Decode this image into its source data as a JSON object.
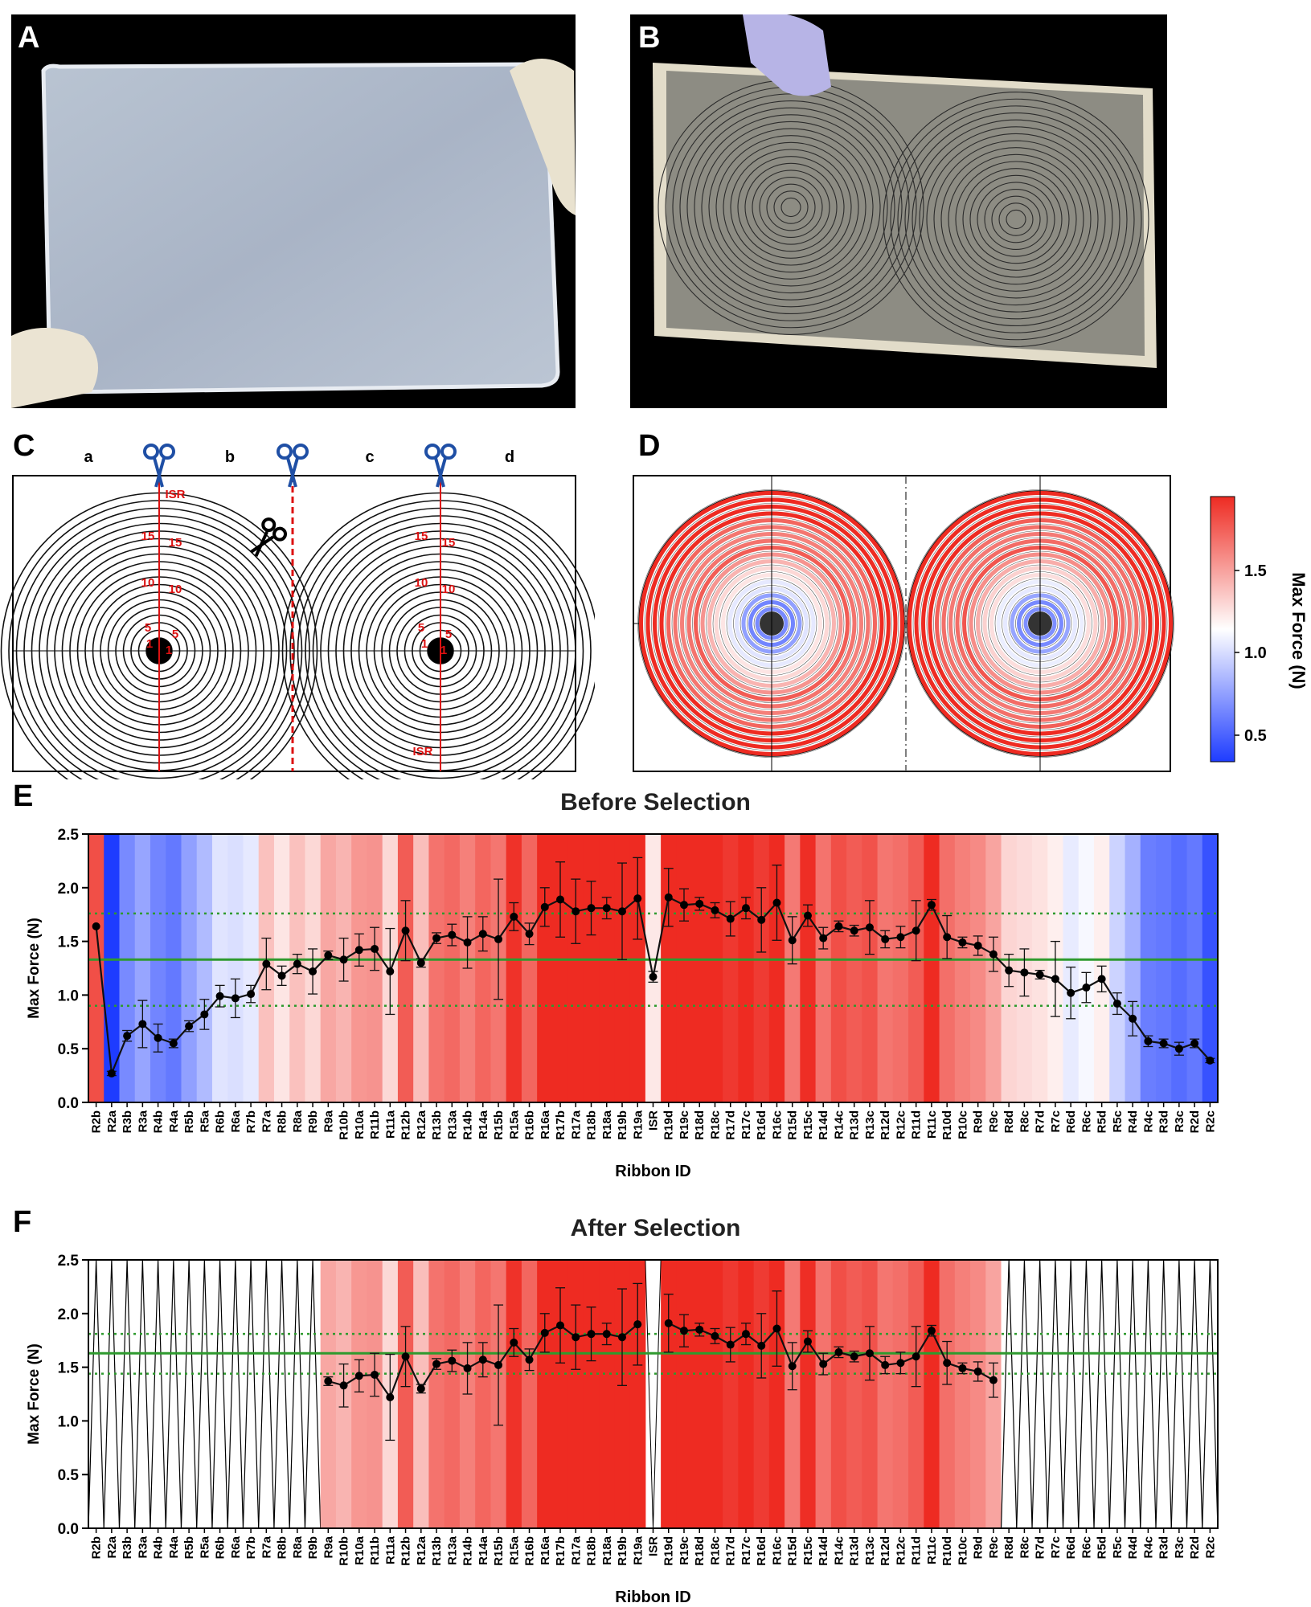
{
  "panels": {
    "a": "A",
    "b": "B",
    "c": "C",
    "d": "D",
    "e": "E",
    "f": "F"
  },
  "diagram_c": {
    "sections": [
      "a",
      "b",
      "c",
      "d"
    ],
    "ring_labels_left": [
      "ISR",
      "15",
      "15",
      "10",
      "10",
      "5",
      "5",
      "1",
      "1"
    ],
    "ring_labels_right": [
      "15",
      "15",
      "10",
      "10",
      "5",
      "5",
      "1",
      "1",
      "ISR"
    ]
  },
  "colorbar": {
    "label": "Max Force (N)",
    "ticks": [
      "1.5",
      "1.0",
      "0.5"
    ],
    "low_color": "#1e3cff",
    "mid_color": "#ffffff",
    "high_color": "#ee2b22"
  },
  "chart_data": [
    {
      "type": "line",
      "title": "Before Selection",
      "xlabel": "Ribbon ID",
      "ylabel": "Max Force (N)",
      "ylim": [
        0,
        2.5
      ],
      "yticks": [
        "0.0",
        "0.5",
        "1.0",
        "1.5",
        "2.0",
        "2.5"
      ],
      "categories": [
        "R2b",
        "R2a",
        "R3b",
        "R3a",
        "R4b",
        "R4a",
        "R5b",
        "R5a",
        "R6b",
        "R6a",
        "R7b",
        "R7a",
        "R8b",
        "R8a",
        "R9b",
        "R9a",
        "R10b",
        "R10a",
        "R11b",
        "R11a",
        "R12b",
        "R12a",
        "R13b",
        "R13a",
        "R14b",
        "R14a",
        "R15b",
        "R15a",
        "R16b",
        "R16a",
        "R17b",
        "R17a",
        "R18b",
        "R18a",
        "R19b",
        "R19a",
        "ISR",
        "R19d",
        "R19c",
        "R18d",
        "R18c",
        "R17d",
        "R17c",
        "R16d",
        "R16c",
        "R15d",
        "R15c",
        "R14d",
        "R14c",
        "R13d",
        "R13c",
        "R12d",
        "R12c",
        "R11d",
        "R11c",
        "R10d",
        "R10c",
        "R9d",
        "R9c",
        "R8d",
        "R8c",
        "R7d",
        "R7c",
        "R6d",
        "R6c",
        "R5d",
        "R5c",
        "R4d",
        "R4c",
        "R3d",
        "R3c",
        "R2d",
        "R2c"
      ],
      "values": [
        1.64,
        0.27,
        0.62,
        0.73,
        0.6,
        0.55,
        0.71,
        0.82,
        0.99,
        0.97,
        1.01,
        1.29,
        1.18,
        1.29,
        1.22,
        1.37,
        1.33,
        1.42,
        1.43,
        1.22,
        1.6,
        1.3,
        1.53,
        1.56,
        1.49,
        1.57,
        1.52,
        1.73,
        1.57,
        1.82,
        1.89,
        1.78,
        1.81,
        1.81,
        1.78,
        1.9,
        1.17,
        1.91,
        1.84,
        1.85,
        1.79,
        1.71,
        1.81,
        1.7,
        1.86,
        1.51,
        1.74,
        1.53,
        1.64,
        1.6,
        1.63,
        1.52,
        1.54,
        1.6,
        1.84,
        1.54,
        1.49,
        1.46,
        1.38,
        1.23,
        1.21,
        1.19,
        1.15,
        1.02,
        1.07,
        1.15,
        0.92,
        0.78,
        0.57,
        0.55,
        0.5,
        0.55,
        0.39
      ],
      "errors": [
        0,
        0.02,
        0.05,
        0.22,
        0.13,
        0.04,
        0.05,
        0.14,
        0.1,
        0.18,
        0.08,
        0.24,
        0.09,
        0.09,
        0.21,
        0.04,
        0.2,
        0.15,
        0.2,
        0.4,
        0.28,
        0.04,
        0.05,
        0.1,
        0.24,
        0.16,
        0.56,
        0.13,
        0.1,
        0.18,
        0.35,
        0.3,
        0.25,
        0.1,
        0.45,
        0.38,
        0.05,
        0.27,
        0.15,
        0.06,
        0.07,
        0.16,
        0.1,
        0.3,
        0.35,
        0.22,
        0.1,
        0.1,
        0.05,
        0.05,
        0.25,
        0.08,
        0.1,
        0.28,
        0.05,
        0.2,
        0.05,
        0.09,
        0.16,
        0.15,
        0.22,
        0.04,
        0.35,
        0.24,
        0.14,
        0.12,
        0.1,
        0.16,
        0.05,
        0.04,
        0.06,
        0.04,
        0.02
      ],
      "mean": 1.33,
      "mean_band": [
        0.9,
        1.76
      ],
      "mean_color": "#2e9a2e"
    },
    {
      "type": "line",
      "title": "After Selection",
      "xlabel": "Ribbon ID",
      "ylabel": "Max Force (N)",
      "ylim": [
        0,
        2.5
      ],
      "yticks": [
        "0.0",
        "0.5",
        "1.0",
        "1.5",
        "2.0",
        "2.5"
      ],
      "categories": [
        "R2b",
        "R2a",
        "R3b",
        "R3a",
        "R4b",
        "R4a",
        "R5b",
        "R5a",
        "R6b",
        "R6a",
        "R7b",
        "R7a",
        "R8b",
        "R8a",
        "R9b",
        "R9a",
        "R10b",
        "R10a",
        "R11b",
        "R11a",
        "R12b",
        "R12a",
        "R13b",
        "R13a",
        "R14b",
        "R14a",
        "R15b",
        "R15a",
        "R16b",
        "R16a",
        "R17b",
        "R17a",
        "R18b",
        "R18a",
        "R19b",
        "R19a",
        "ISR",
        "R19d",
        "R19c",
        "R18d",
        "R18c",
        "R17d",
        "R17c",
        "R16d",
        "R16c",
        "R15d",
        "R15c",
        "R14d",
        "R14c",
        "R13d",
        "R13c",
        "R12d",
        "R12c",
        "R11d",
        "R11c",
        "R10d",
        "R10c",
        "R9d",
        "R9c",
        "R8d",
        "R8c",
        "R7d",
        "R7c",
        "R6d",
        "R6c",
        "R5d",
        "R5c",
        "R4d",
        "R4c",
        "R3d",
        "R3c",
        "R2d",
        "R2c"
      ],
      "values": [
        null,
        null,
        null,
        null,
        null,
        null,
        null,
        null,
        null,
        null,
        null,
        null,
        null,
        null,
        null,
        1.37,
        1.33,
        1.42,
        1.43,
        1.22,
        1.6,
        1.3,
        1.53,
        1.56,
        1.49,
        1.57,
        1.52,
        1.73,
        1.57,
        1.82,
        1.89,
        1.78,
        1.81,
        1.81,
        1.78,
        1.9,
        null,
        1.91,
        1.84,
        1.85,
        1.79,
        1.71,
        1.81,
        1.7,
        1.86,
        1.51,
        1.74,
        1.53,
        1.64,
        1.6,
        1.63,
        1.52,
        1.54,
        1.6,
        1.84,
        1.54,
        1.49,
        1.46,
        1.38,
        null,
        null,
        null,
        null,
        null,
        null,
        null,
        null,
        null,
        null,
        null,
        null,
        null,
        null
      ],
      "errors": [
        0,
        0,
        0,
        0,
        0,
        0,
        0,
        0,
        0,
        0,
        0,
        0,
        0,
        0,
        0,
        0.04,
        0.2,
        0.15,
        0.2,
        0.4,
        0.28,
        0.04,
        0.05,
        0.1,
        0.24,
        0.16,
        0.56,
        0.13,
        0.1,
        0.18,
        0.35,
        0.3,
        0.25,
        0.1,
        0.45,
        0.38,
        0,
        0.27,
        0.15,
        0.06,
        0.07,
        0.16,
        0.1,
        0.3,
        0.35,
        0.22,
        0.1,
        0.1,
        0.05,
        0.05,
        0.25,
        0.08,
        0.1,
        0.28,
        0.05,
        0.2,
        0.05,
        0.09,
        0.16,
        0,
        0,
        0,
        0,
        0,
        0,
        0,
        0,
        0,
        0,
        0,
        0,
        0,
        0
      ],
      "mean": 1.63,
      "mean_band": [
        1.44,
        1.81
      ],
      "mean_color": "#2e9a2e"
    }
  ]
}
